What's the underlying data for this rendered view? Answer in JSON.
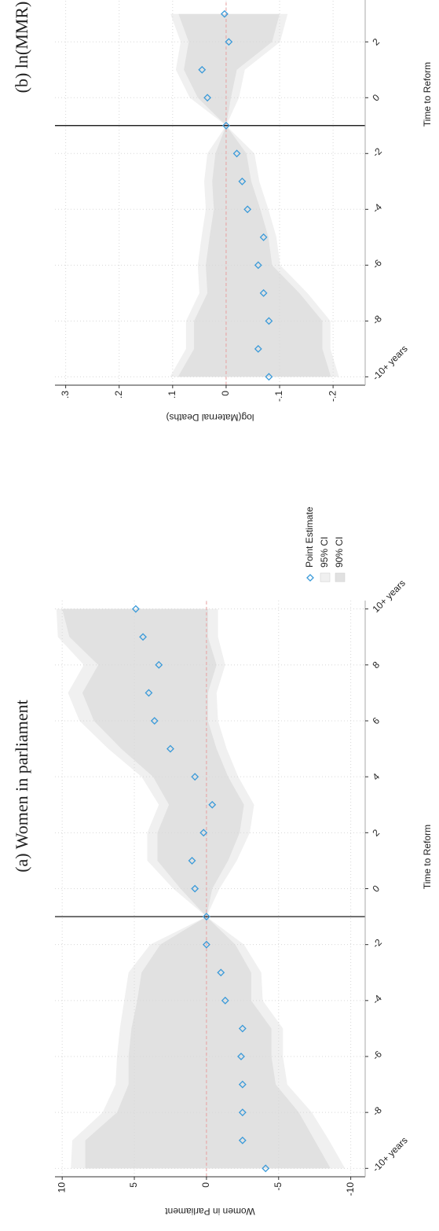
{
  "chart_data": [
    {
      "type": "scatter",
      "title": "(a) Women in parliament",
      "x_label": "Time to Reform",
      "y_label": "Women in Parliament",
      "x": [
        -10,
        -9,
        -8,
        -7,
        -6,
        -5,
        -4,
        -3,
        -2,
        -1,
        0,
        1,
        2,
        3,
        4,
        5,
        6,
        7,
        8,
        9,
        10
      ],
      "series": [
        {
          "name": "Point Estimate",
          "color": "#3a9ad9",
          "values": [
            -4.1,
            -2.5,
            -2.5,
            -2.5,
            -2.4,
            -2.5,
            -1.3,
            -1.0,
            0,
            0,
            0.8,
            1.0,
            0.2,
            -0.4,
            0.8,
            2.5,
            3.6,
            4.0,
            3.3,
            4.4,
            4.9
          ]
        }
      ],
      "bands": [
        {
          "name": "95% CI",
          "color": "#f0f0f0",
          "lower": [
            -9.6,
            -8.5,
            -7.3,
            -5.6,
            -5.3,
            -5.3,
            -3.9,
            -3.8,
            -2.6,
            0,
            -0.9,
            -2.1,
            -3.0,
            -3.3,
            -2.2,
            -1.4,
            -0.8,
            -0.7,
            -1.3,
            -0.8,
            -0.8
          ],
          "upper": [
            9.4,
            9.3,
            7.2,
            6.3,
            6.2,
            6.0,
            5.7,
            5.4,
            3.9,
            0,
            2.3,
            4.1,
            4.1,
            3.3,
            4.5,
            6.8,
            8.8,
            9.6,
            8.5,
            10.3,
            10.4
          ]
        },
        {
          "name": "90% CI",
          "color": "#e1e1e1",
          "lower": [
            -8.6,
            -7.5,
            -6.4,
            -4.8,
            -4.5,
            -4.5,
            -3.1,
            -3.1,
            -2.0,
            0,
            -0.4,
            -1.5,
            -2.3,
            -2.6,
            -1.5,
            -0.7,
            -0.1,
            -0.1,
            -0.7,
            -0.1,
            -0.1
          ],
          "upper": [
            8.4,
            8.4,
            6.2,
            5.4,
            5.4,
            5.2,
            4.8,
            4.5,
            3.2,
            0,
            1.8,
            3.4,
            3.4,
            2.6,
            3.7,
            5.9,
            7.8,
            8.6,
            7.5,
            9.5,
            10.0
          ]
        }
      ],
      "vline": -1,
      "hline": 0,
      "xlim": [
        -10.3,
        10.3
      ],
      "xticks": [
        {
          "value": -10,
          "label": "-10+ years"
        },
        -8,
        -6,
        -4,
        -2,
        0,
        2,
        4,
        6,
        8,
        {
          "value": 10,
          "label": "10+ years"
        }
      ],
      "ylim": [
        -11,
        10.5
      ],
      "yticks": [
        10,
        5,
        0,
        -5,
        -10
      ],
      "grid": true,
      "legend": "right"
    },
    {
      "type": "scatter",
      "title": "(b) ln(MMR)",
      "x_label": "Time to Reform",
      "y_label": "log(Maternal Deaths)",
      "x": [
        -10,
        -9,
        -8,
        -7,
        -6,
        -5,
        -4,
        -3,
        -2,
        -1,
        0,
        1,
        2,
        3
      ],
      "series": [
        {
          "color": "#3a9ad9",
          "values": [
            -0.08,
            -0.06,
            -0.08,
            -0.07,
            -0.06,
            -0.07,
            -0.04,
            -0.03,
            -0.02,
            0,
            0.035,
            0.045,
            -0.005,
            0.003
          ]
        }
      ],
      "bands": [
        {
          "color": "#f0f0f0",
          "lower": [
            -0.211,
            -0.195,
            -0.195,
            -0.152,
            -0.101,
            -0.094,
            -0.079,
            -0.062,
            -0.053,
            0,
            -0.024,
            -0.035,
            -0.101,
            -0.115
          ],
          "upper": [
            0.105,
            0.075,
            0.075,
            0.05,
            0.053,
            0.046,
            0.038,
            0.041,
            0.035,
            0,
            0.068,
            0.094,
            0.085,
            0.104
          ]
        },
        {
          "color": "#e1e1e1",
          "lower": [
            -0.196,
            -0.18,
            -0.18,
            -0.137,
            -0.086,
            -0.079,
            -0.064,
            -0.047,
            -0.038,
            0,
            -0.009,
            -0.02,
            -0.086,
            -0.1
          ],
          "upper": [
            0.09,
            0.06,
            0.06,
            0.035,
            0.038,
            0.031,
            0.023,
            0.026,
            0.02,
            0,
            0.053,
            0.079,
            0.07,
            0.089
          ]
        }
      ],
      "vline": -1,
      "hline": 0,
      "xlim": [
        -10.3,
        3.5
      ],
      "xticks": [
        {
          "value": -10,
          "label": "-10+ years"
        },
        -8,
        -6,
        -4,
        -2,
        0,
        2
      ],
      "ylim": [
        -0.26,
        0.32
      ],
      "yticks": [
        {
          "value": 0.3,
          "label": ".3"
        },
        {
          "value": 0.2,
          "label": ".2"
        },
        {
          "value": 0.1,
          "label": ".1"
        },
        0,
        {
          "value": -0.1,
          "label": "-.1"
        },
        {
          "value": -0.2,
          "label": "-.2"
        }
      ],
      "grid": true
    }
  ]
}
